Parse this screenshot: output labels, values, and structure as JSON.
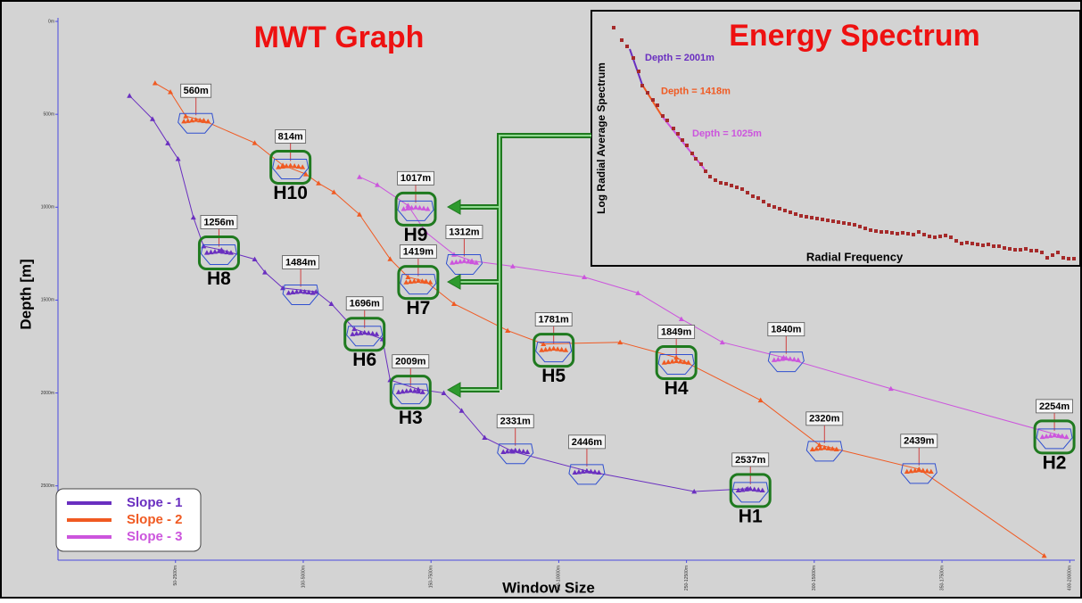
{
  "chart_data": [
    {
      "type": "line",
      "title": "MWT Graph",
      "x_label": "Window Size",
      "y_label": "Depth [m]",
      "xlim": [
        4,
        402
      ],
      "ylim": [
        0,
        2900
      ],
      "y_inverted": true,
      "xticks": [
        {
          "value": 50,
          "label": "50-2500m"
        },
        {
          "value": 100,
          "label": "100-5000m"
        },
        {
          "value": 150,
          "label": "150-7500m"
        },
        {
          "value": 200,
          "label": "200-10000m"
        },
        {
          "value": 250,
          "label": "250-12500m"
        },
        {
          "value": 300,
          "label": "300-15000m"
        },
        {
          "value": 350,
          "label": "350-17500m"
        },
        {
          "value": 400,
          "label": "400-20000m"
        }
      ],
      "yticks": [
        {
          "value": 0,
          "label": "0m"
        },
        {
          "value": 500,
          "label": "500m"
        },
        {
          "value": 1000,
          "label": "1000m"
        },
        {
          "value": 1500,
          "label": "1500m"
        },
        {
          "value": 2000,
          "label": "2000m"
        },
        {
          "value": 2500,
          "label": "2500m"
        }
      ],
      "legend": "lower left",
      "series": [
        {
          "name": "Slope - 1",
          "color": "#6a2fc0",
          "x": [
            32,
            41,
            47,
            51,
            57,
            61,
            68,
            81,
            85,
            92,
            105,
            111,
            120,
            131,
            134,
            145,
            155,
            162,
            171,
            182,
            211,
            253,
            274
          ],
          "values": [
            400,
            525,
            655,
            740,
            1055,
            1210,
            1230,
            1280,
            1350,
            1435,
            1455,
            1520,
            1655,
            1710,
            1930,
            1980,
            2000,
            2095,
            2240,
            2315,
            2420,
            2530,
            2515
          ]
        },
        {
          "name": "Slope - 2",
          "color": "#f05a22",
          "x": [
            42,
            48,
            54,
            61,
            81,
            92,
            101,
            106,
            112,
            122,
            134,
            141,
            148,
            159,
            180,
            194,
            224,
            246,
            279,
            302,
            341,
            390
          ],
          "values": [
            332,
            380,
            510,
            534,
            654,
            774,
            822,
            871,
            919,
            1039,
            1279,
            1376,
            1400,
            1520,
            1664,
            1736,
            1727,
            1809,
            2039,
            2280,
            2410,
            2876
          ]
        },
        {
          "name": "Slope - 3",
          "color": "#cc55dd",
          "x": [
            122,
            129,
            141,
            148,
            159,
            166,
            182,
            210,
            231,
            248,
            264,
            288,
            330,
            397
          ],
          "values": [
            837,
            880,
            991,
            1135,
            1255,
            1289,
            1318,
            1376,
            1462,
            1602,
            1727,
            1809,
            1977,
            2232
          ]
        }
      ],
      "annotations": [
        {
          "label": "560m",
          "x": 58,
          "y": 534,
          "color": "#f05a22"
        },
        {
          "label": "814m",
          "x": 95,
          "y": 780,
          "color": "#f05a22",
          "highlight": "H10"
        },
        {
          "label": "1017m",
          "x": 144,
          "y": 1005,
          "color": "#cc55dd",
          "highlight": "H9"
        },
        {
          "label": "1256m",
          "x": 67,
          "y": 1241,
          "color": "#6a2fc0",
          "highlight": "H8"
        },
        {
          "label": "1312m",
          "x": 163,
          "y": 1294,
          "color": "#cc55dd"
        },
        {
          "label": "1419m",
          "x": 145,
          "y": 1400,
          "color": "#f05a22",
          "highlight": "H7"
        },
        {
          "label": "1484m",
          "x": 99,
          "y": 1457,
          "color": "#6a2fc0"
        },
        {
          "label": "1696m",
          "x": 124,
          "y": 1679,
          "color": "#6a2fc0",
          "highlight": "H6"
        },
        {
          "label": "1781m",
          "x": 198,
          "y": 1765,
          "color": "#f05a22",
          "highlight": "H5"
        },
        {
          "label": "1849m",
          "x": 246,
          "y": 1832,
          "color": "#f05a22",
          "highlight": "H4"
        },
        {
          "label": "1840m",
          "x": 289,
          "y": 1818,
          "color": "#cc55dd"
        },
        {
          "label": "2009m",
          "x": 142,
          "y": 1991,
          "color": "#6a2fc0",
          "highlight": "H3"
        },
        {
          "label": "2331m",
          "x": 183,
          "y": 2313,
          "color": "#6a2fc0"
        },
        {
          "label": "2446m",
          "x": 211,
          "y": 2424,
          "color": "#6a2fc0"
        },
        {
          "label": "2320m",
          "x": 304,
          "y": 2299,
          "color": "#f05a22"
        },
        {
          "label": "2439m",
          "x": 341,
          "y": 2419,
          "color": "#f05a22"
        },
        {
          "label": "2537m",
          "x": 275,
          "y": 2520,
          "color": "#6a2fc0",
          "highlight": "H1"
        },
        {
          "label": "2254m",
          "x": 394,
          "y": 2232,
          "color": "#cc55dd",
          "highlight": "H2"
        }
      ]
    },
    {
      "type": "scatter",
      "title": "Energy Spectrum",
      "x_label": "Radial Frequency",
      "y_label": "Log Radial Average Spectrum",
      "xlim": [
        0,
        525
      ],
      "ylim": [
        2,
        275
      ],
      "color": "#a52a2a",
      "x": [
        8,
        17,
        23,
        30,
        36,
        40,
        46,
        52,
        57,
        63,
        68,
        75,
        80,
        85,
        90,
        96,
        100,
        106,
        111,
        116,
        122,
        128,
        134,
        140,
        146,
        152,
        158,
        164,
        170,
        176,
        182,
        188,
        194,
        200,
        206,
        212,
        218,
        224,
        230,
        236,
        242,
        248,
        254,
        260,
        266,
        272,
        278,
        284,
        290,
        296,
        302,
        308,
        314,
        320,
        326,
        332,
        338,
        344,
        350,
        356,
        362,
        368,
        374,
        380,
        386,
        392,
        398,
        404,
        410,
        416,
        422,
        428,
        434,
        440,
        446,
        452,
        458,
        464,
        470,
        476,
        482,
        488,
        494,
        500,
        506,
        512,
        518,
        524
      ],
      "values": [
        269,
        255,
        248,
        235,
        220,
        204,
        196,
        188,
        182,
        170,
        165,
        156,
        150,
        143,
        137,
        128,
        122,
        116,
        108,
        102,
        98,
        95,
        94,
        92,
        90,
        88,
        84,
        80,
        78,
        74,
        70,
        68,
        66,
        64,
        62,
        60,
        58,
        57,
        56,
        55,
        54,
        53,
        52,
        51,
        50,
        49,
        48,
        46,
        44,
        42,
        41,
        40,
        40,
        39,
        38,
        39,
        38,
        37,
        40,
        37,
        35,
        34,
        35,
        36,
        34,
        30,
        27,
        28,
        27,
        26,
        25,
        26,
        24,
        24,
        22,
        21,
        20,
        20,
        21,
        19,
        19,
        17,
        11,
        14,
        17,
        11,
        10,
        10
      ],
      "fits": [
        {
          "label": "Depth = 2001m",
          "color": "#6a2fc0",
          "x": [
            26,
            40
          ],
          "values": [
            245,
            205
          ]
        },
        {
          "label": "Depth = 1418m",
          "color": "#f05a22",
          "x": [
            40,
            62
          ],
          "values": [
            205,
            170
          ]
        },
        {
          "label": "Depth = 1025m",
          "color": "#cc55dd",
          "x": [
            62,
            110
          ],
          "values": [
            170,
            110
          ]
        }
      ]
    }
  ]
}
